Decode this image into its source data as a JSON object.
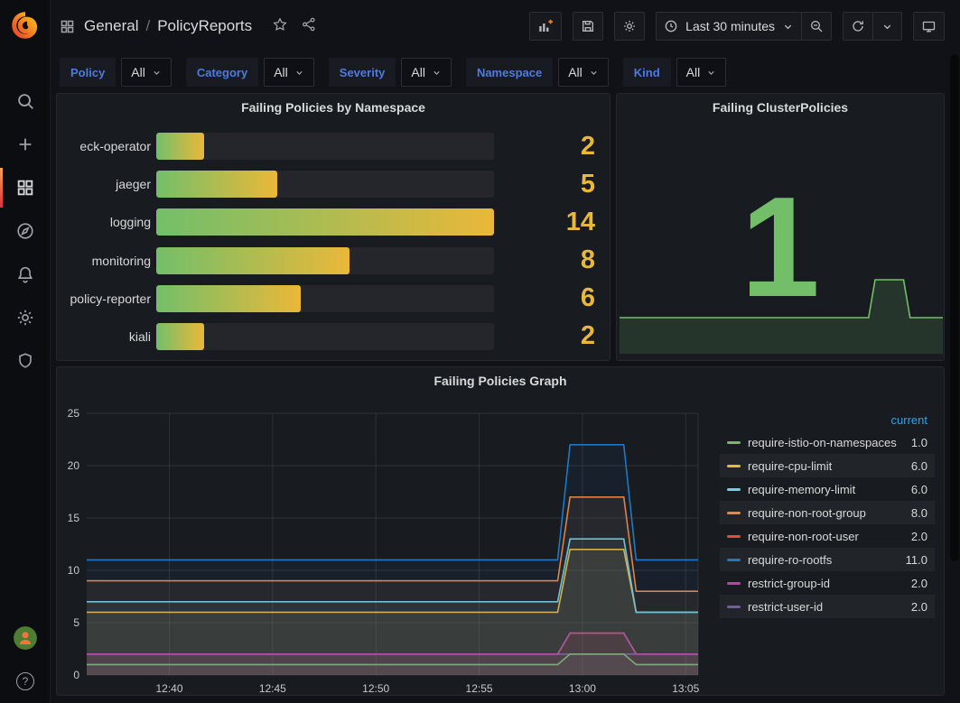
{
  "header": {
    "breadcrumb": {
      "section": "General",
      "separator": "/",
      "page": "PolicyReports"
    },
    "toolbar": {
      "time_range": "Last 30 minutes",
      "buttons": [
        "add-panel",
        "save-dashboard",
        "dashboard-settings",
        "time-range-picker",
        "zoom-out",
        "refresh",
        "refresh-interval",
        "cycle-view-mode"
      ]
    }
  },
  "sidebar": {
    "items": [
      "search",
      "create",
      "dashboards",
      "explore",
      "alerting",
      "configuration",
      "server-admin"
    ],
    "active": "dashboards",
    "bottom": [
      "user-avatar",
      "help"
    ],
    "help_glyph": "?"
  },
  "filters": [
    {
      "label": "Policy",
      "value": "All"
    },
    {
      "label": "Category",
      "value": "All"
    },
    {
      "label": "Severity",
      "value": "All"
    },
    {
      "label": "Namespace",
      "value": "All"
    },
    {
      "label": "Kind",
      "value": "All"
    }
  ],
  "chart_data": [
    {
      "type": "bar",
      "title": "Failing Policies by Namespace",
      "orientation": "horizontal",
      "categories": [
        "eck-operator",
        "jaeger",
        "logging",
        "monitoring",
        "policy-reporter",
        "kiali"
      ],
      "values": [
        2,
        5,
        14,
        8,
        6,
        2
      ],
      "max": 14,
      "value_color": "#eab839",
      "bar_gradient": [
        "#73bf69",
        "#eab839"
      ]
    },
    {
      "type": "stat",
      "title": "Failing ClusterPolicies",
      "value": "1",
      "color": "#73bf69",
      "sparkline": {
        "x_minutes": [
          0,
          22.8,
          23.4,
          26,
          26.6,
          29.6
        ],
        "y": [
          1,
          1,
          2,
          2,
          1,
          1
        ]
      }
    },
    {
      "type": "line",
      "title": "Failing Policies Graph",
      "legend_header": "current",
      "legend_position": "right",
      "grid": true,
      "ylim": [
        0,
        25
      ],
      "y_ticks": [
        0,
        5,
        10,
        15,
        20,
        25
      ],
      "x_domain_minutes": [
        0,
        29.6
      ],
      "x_ticks": [
        {
          "label": "12:40",
          "t": 4
        },
        {
          "label": "12:45",
          "t": 9
        },
        {
          "label": "12:50",
          "t": 14
        },
        {
          "label": "12:55",
          "t": 19
        },
        {
          "label": "13:00",
          "t": 24
        },
        {
          "label": "13:05",
          "t": 29
        }
      ],
      "segment_times": [
        0,
        22.8,
        23.4,
        26,
        26.6,
        29.6
      ],
      "series": [
        {
          "name": "require-istio-on-namespaces",
          "color": "#7eb26d",
          "current": "1.0",
          "values": [
            1,
            1,
            2,
            2,
            1,
            1
          ],
          "z": 5
        },
        {
          "name": "require-cpu-limit",
          "color": "#eab839",
          "current": "6.0",
          "values": [
            6,
            6,
            12,
            12,
            6,
            6
          ],
          "z": 1
        },
        {
          "name": "require-memory-limit",
          "color": "#6ed0e0",
          "current": "6.0",
          "values": [
            7,
            7,
            13,
            13,
            6,
            6
          ],
          "z": 6
        },
        {
          "name": "require-non-root-group",
          "color": "#ef843c",
          "current": "8.0",
          "values": [
            9,
            9,
            17,
            17,
            8,
            8
          ],
          "z": 7
        },
        {
          "name": "require-non-root-user",
          "color": "#e24d42",
          "current": "2.0",
          "values": [
            2,
            2,
            4,
            4,
            2,
            2
          ],
          "z": 2
        },
        {
          "name": "require-ro-rootfs",
          "color": "#1f78c1",
          "current": "11.0",
          "values": [
            11,
            11,
            22,
            22,
            11,
            11
          ],
          "z": 8
        },
        {
          "name": "restrict-group-id",
          "color": "#ba43a9",
          "current": "2.0",
          "values": [
            2,
            2,
            4,
            4,
            2,
            2
          ],
          "z": 4
        },
        {
          "name": "restrict-user-id",
          "color": "#705da0",
          "current": "2.0",
          "values": [
            2,
            2,
            2,
            2,
            2,
            2
          ],
          "z": 3
        }
      ]
    }
  ],
  "colors": {
    "accent_orange": "#e8862d",
    "amber": "#eab839",
    "green": "#73bf69",
    "link_blue": "#4d7be0",
    "legend_header_blue": "#33a2e5"
  }
}
